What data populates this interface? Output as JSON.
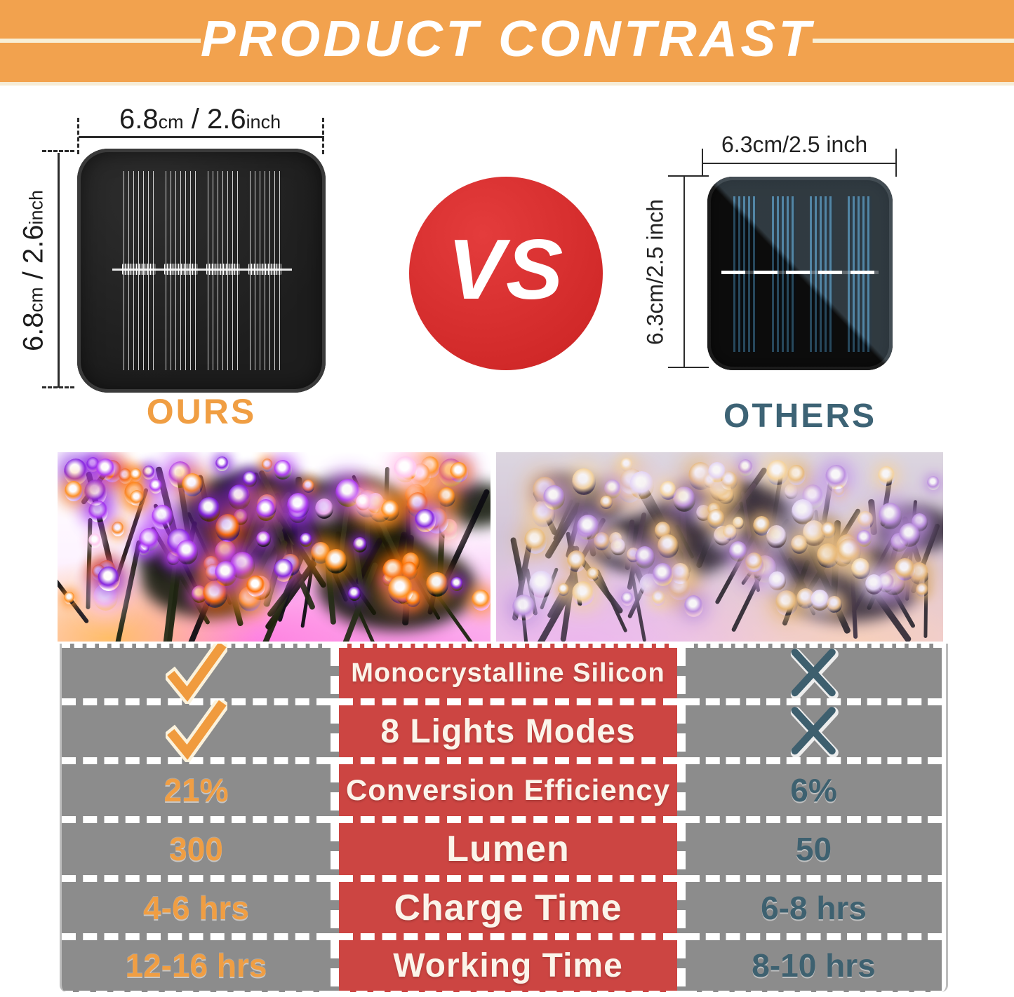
{
  "banner": {
    "title": "PRODUCT CONTRAST"
  },
  "ours": {
    "label": "OURS",
    "dimension": {
      "value1": "6.8",
      "unit1": "cm",
      "separator": " / ",
      "value2": "2.6",
      "unit2": "inch"
    }
  },
  "vs": {
    "label": "VS"
  },
  "others": {
    "label": "OTHERS",
    "dimension_text": "6.3cm/2.5 inch"
  },
  "table": {
    "rows": [
      {
        "ours": "check",
        "feature": "Monocrystalline Silicon",
        "others": "cross"
      },
      {
        "ours": "check",
        "feature": "8 Lights Modes",
        "others": "cross"
      },
      {
        "ours": "21%",
        "feature": "Conversion Efficiency",
        "others": "6%"
      },
      {
        "ours": "300",
        "feature": "Lumen",
        "others": "50"
      },
      {
        "ours": "4-6 hrs",
        "feature": "Charge Time",
        "others": "6-8 hrs"
      },
      {
        "ours": "12-16 hrs",
        "feature": "Working Time",
        "others": "8-10 hrs"
      }
    ]
  },
  "colors": {
    "banner_orange": "#F2A24E",
    "table_red": "#CC4542",
    "column_gray": "#8C8C8C",
    "accent_orange": "#F09E43",
    "accent_teal": "#3D6375",
    "vs_red": "#D02828"
  }
}
